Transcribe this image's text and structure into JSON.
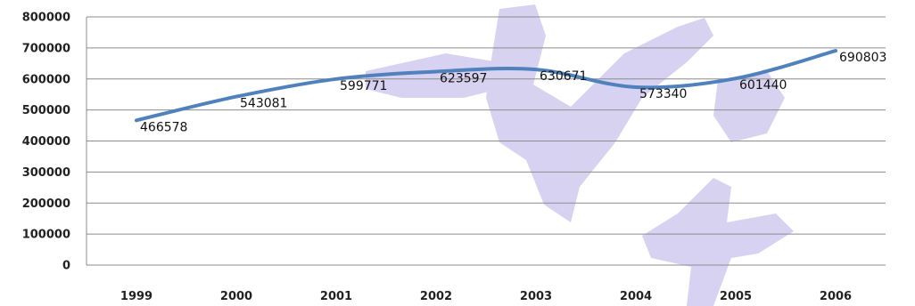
{
  "chart_data": {
    "type": "line",
    "title": "",
    "xlabel": "",
    "ylabel": "",
    "x": [
      "1999",
      "2000",
      "2001",
      "2002",
      "2003",
      "2004",
      "2005",
      "2006"
    ],
    "series": [
      {
        "values": [
          466578,
          543081,
          599771,
          623597,
          630671,
          573340,
          601440,
          690803
        ],
        "color": "#4f81bd"
      }
    ],
    "ylim": [
      0,
      800000
    ],
    "yticks": [
      "0",
      "100000",
      "200000",
      "300000",
      "400000",
      "500000",
      "600000",
      "700000",
      "800000"
    ],
    "data_labels": [
      "466578",
      "543081",
      "599771",
      "623597",
      "630671",
      "573340",
      "601440",
      "690803"
    ],
    "grid": true,
    "smooth": true,
    "legend": "none"
  }
}
